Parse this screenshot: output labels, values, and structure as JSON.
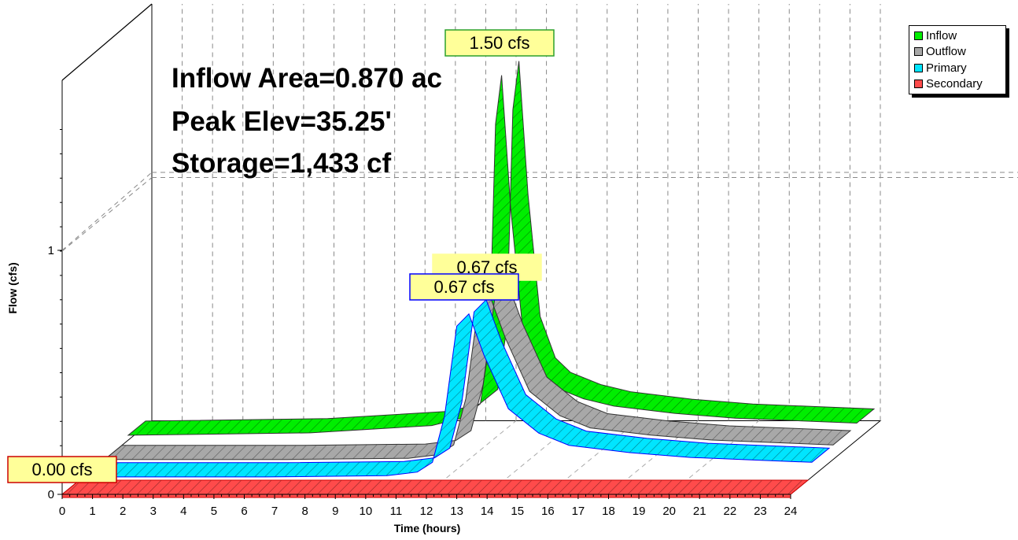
{
  "chart_data": {
    "type": "area",
    "xlabel": "Time  (hours)",
    "ylabel": "Flow  (cfs)",
    "xlim": [
      0,
      24
    ],
    "ylim": [
      0,
      1.6
    ],
    "x_ticks": [
      "0",
      "1",
      "2",
      "3",
      "4",
      "5",
      "6",
      "7",
      "8",
      "9",
      "10",
      "11",
      "12",
      "13",
      "14",
      "15",
      "16",
      "17",
      "18",
      "19",
      "20",
      "21",
      "22",
      "23",
      "24"
    ],
    "y_ticks": [
      "0",
      "1"
    ],
    "grid": true,
    "legend_position": "top-right",
    "info_lines": [
      "Inflow Area=0.870 ac",
      "Peak Elev=35.25'",
      "Storage=1,433 cf"
    ],
    "series": [
      {
        "name": "Inflow",
        "color": "#00ee00",
        "peak_label": "1.50 cfs",
        "x": [
          0,
          6,
          10,
          11,
          11.6,
          11.9,
          12.1,
          12.3,
          12.6,
          13.0,
          13.5,
          14,
          15,
          16,
          18,
          20,
          22,
          24
        ],
        "y": [
          0.02,
          0.03,
          0.06,
          0.09,
          0.15,
          0.4,
          1.3,
          1.5,
          0.95,
          0.45,
          0.28,
          0.22,
          0.17,
          0.14,
          0.11,
          0.09,
          0.08,
          0.07
        ]
      },
      {
        "name": "Outflow",
        "color": "#a8a8a8",
        "peak_label": "0.67 cfs",
        "x": [
          0,
          6,
          10,
          11,
          11.5,
          11.9,
          12.3,
          12.7,
          13.2,
          14,
          15,
          16,
          18,
          20,
          22,
          24
        ],
        "y": [
          0.0,
          0.0,
          0.005,
          0.02,
          0.06,
          0.25,
          0.62,
          0.67,
          0.5,
          0.28,
          0.18,
          0.13,
          0.1,
          0.08,
          0.07,
          0.06
        ]
      },
      {
        "name": "Primary",
        "color": "#00e5ff",
        "peak_label": "0.67 cfs",
        "x": [
          0,
          6,
          10,
          11,
          11.5,
          11.9,
          12.3,
          12.7,
          13.2,
          14,
          15,
          16,
          18,
          20,
          22,
          24
        ],
        "y": [
          0.0,
          0.0,
          0.005,
          0.02,
          0.06,
          0.25,
          0.62,
          0.67,
          0.5,
          0.28,
          0.18,
          0.13,
          0.1,
          0.08,
          0.07,
          0.06
        ]
      },
      {
        "name": "Secondary",
        "color": "#ff4b4b",
        "peak_label": "0.00 cfs",
        "x": [
          0,
          24
        ],
        "y": [
          0.0,
          0.0
        ]
      }
    ]
  }
}
